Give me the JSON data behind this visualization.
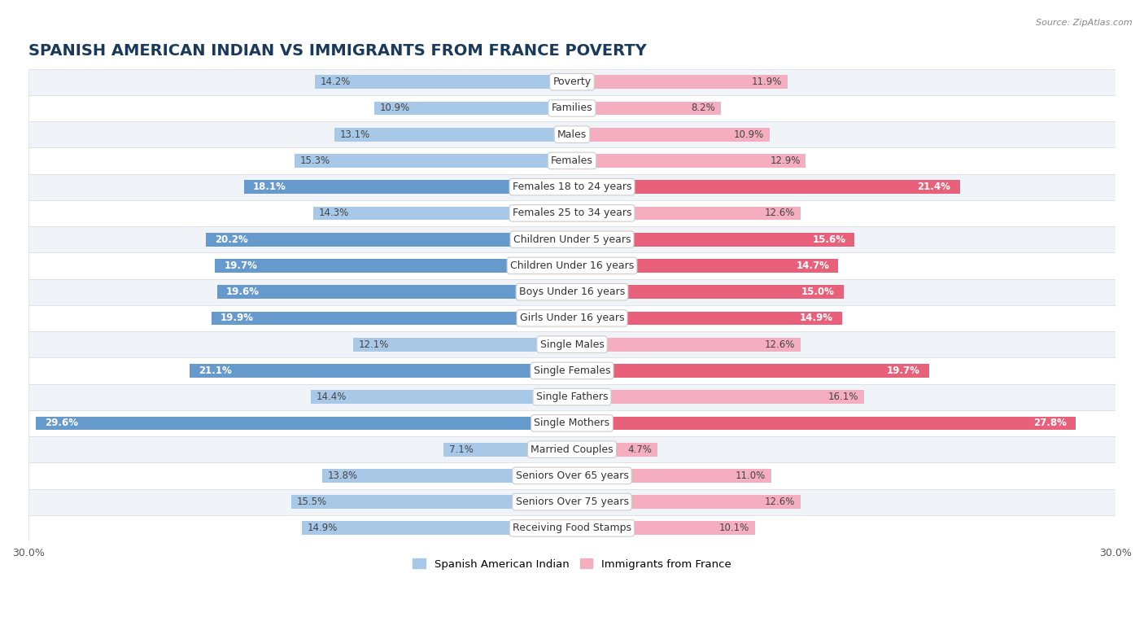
{
  "title": "SPANISH AMERICAN INDIAN VS IMMIGRANTS FROM FRANCE POVERTY",
  "source": "Source: ZipAtlas.com",
  "categories": [
    "Poverty",
    "Families",
    "Males",
    "Females",
    "Females 18 to 24 years",
    "Females 25 to 34 years",
    "Children Under 5 years",
    "Children Under 16 years",
    "Boys Under 16 years",
    "Girls Under 16 years",
    "Single Males",
    "Single Females",
    "Single Fathers",
    "Single Mothers",
    "Married Couples",
    "Seniors Over 65 years",
    "Seniors Over 75 years",
    "Receiving Food Stamps"
  ],
  "left_values": [
    14.2,
    10.9,
    13.1,
    15.3,
    18.1,
    14.3,
    20.2,
    19.7,
    19.6,
    19.9,
    12.1,
    21.1,
    14.4,
    29.6,
    7.1,
    13.8,
    15.5,
    14.9
  ],
  "right_values": [
    11.9,
    8.2,
    10.9,
    12.9,
    21.4,
    12.6,
    15.6,
    14.7,
    15.0,
    14.9,
    12.6,
    19.7,
    16.1,
    27.8,
    4.7,
    11.0,
    12.6,
    10.1
  ],
  "left_color_normal": "#a8c8e8",
  "right_color_normal": "#f4aec0",
  "left_color_highlight": "#6699cc",
  "right_color_highlight": "#e8607a",
  "highlight_rows": [
    4,
    6,
    7,
    8,
    9,
    11,
    13
  ],
  "left_label": "Spanish American Indian",
  "right_label": "Immigrants from France",
  "axis_limit": 30.0,
  "bg_color": "#ffffff",
  "row_colors": [
    "#f0f4f8",
    "#ffffff"
  ],
  "row_border_color": "#d8dde2",
  "title_fontsize": 14,
  "label_fontsize": 9,
  "value_fontsize": 8.5,
  "source_fontsize": 8
}
